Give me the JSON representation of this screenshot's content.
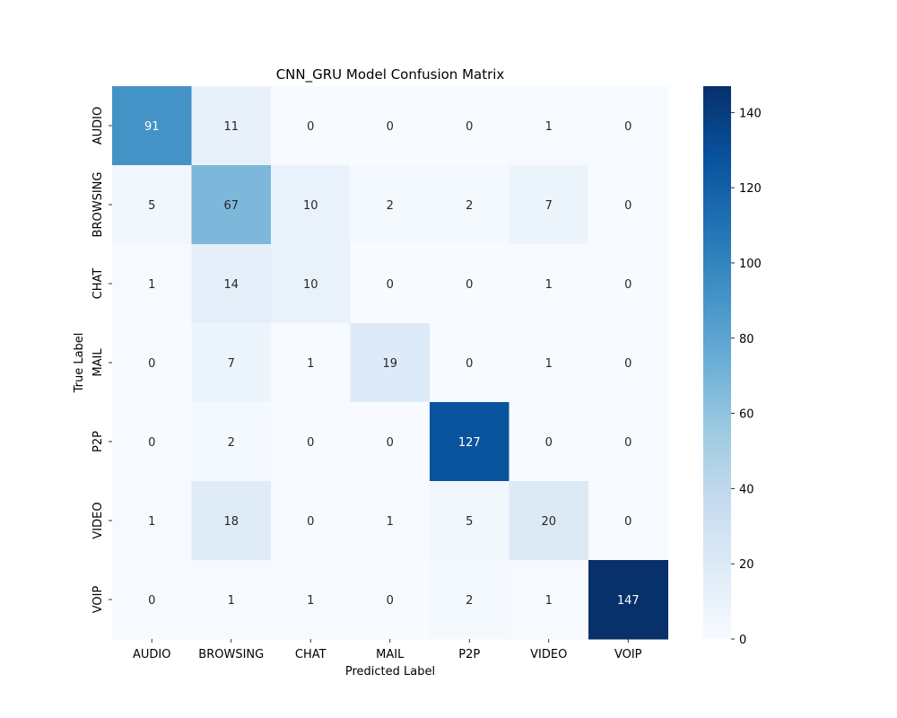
{
  "chart_data": {
    "type": "heatmap",
    "title": "CNN_GRU Model Confusion Matrix",
    "xlabel": "Predicted Label",
    "ylabel": "True Label",
    "x_categories": [
      "AUDIO",
      "BROWSING",
      "CHAT",
      "MAIL",
      "P2P",
      "VIDEO",
      "VOIP"
    ],
    "y_categories": [
      "AUDIO",
      "BROWSING",
      "CHAT",
      "MAIL",
      "P2P",
      "VIDEO",
      "VOIP"
    ],
    "values": [
      [
        91,
        11,
        0,
        0,
        0,
        1,
        0
      ],
      [
        5,
        67,
        10,
        2,
        2,
        7,
        0
      ],
      [
        1,
        14,
        10,
        0,
        0,
        1,
        0
      ],
      [
        0,
        7,
        1,
        19,
        0,
        1,
        0
      ],
      [
        0,
        2,
        0,
        0,
        127,
        0,
        0
      ],
      [
        1,
        18,
        0,
        1,
        5,
        20,
        0
      ],
      [
        0,
        1,
        1,
        0,
        2,
        1,
        147
      ]
    ],
    "colormap": "Blues",
    "colorbar": {
      "min": 0,
      "max": 147,
      "ticks": [
        0,
        20,
        40,
        60,
        80,
        100,
        120,
        140
      ]
    },
    "annotations": true
  }
}
